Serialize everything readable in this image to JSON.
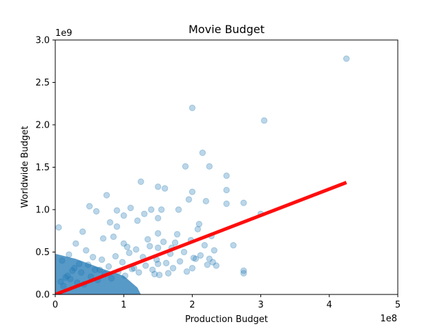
{
  "chart_data": {
    "type": "scatter",
    "title": "Movie Budget",
    "xlabel": "Production Budget",
    "ylabel": "Worldwide Budget",
    "x_offset_label": "1e8",
    "y_offset_label": "1e9",
    "xlim": [
      0,
      5
    ],
    "ylim": [
      0,
      3.0
    ],
    "x_ticks": [
      "0",
      "1",
      "2",
      "3",
      "4",
      "5"
    ],
    "y_ticks": [
      "0.0",
      "0.5",
      "1.0",
      "1.5",
      "2.0",
      "2.5",
      "3.0"
    ],
    "grid": false,
    "point_color": "#1f77b4",
    "point_opacity": 0.3,
    "line_color": "#ff0000",
    "series": [
      {
        "kind": "points",
        "x": [
          4.25,
          2.0,
          3.05,
          2.15,
          1.9,
          2.25,
          2.5,
          1.25,
          2.5,
          1.5,
          1.6,
          2.0,
          2.75,
          2.5,
          2.2,
          1.8,
          1.55,
          1.95,
          3.0,
          0.75,
          1.1,
          0.9,
          1.4,
          0.05,
          0.5,
          2.6,
          2.3,
          2.75,
          2.75,
          1.3,
          1.7,
          2.1,
          2.0,
          2.25,
          0.6,
          0.8,
          1.0,
          1.2,
          0.4,
          0.3,
          0.2,
          0.1,
          1.5,
          1.5,
          1.5,
          1.5,
          1.0,
          0.7,
          0.9,
          1.35,
          2.05,
          2.35,
          1.75,
          1.65,
          0.45,
          0.55,
          0.65,
          0.85,
          1.05,
          1.15,
          1.45,
          0.35,
          0.25,
          0.15,
          0.08,
          0.12,
          0.18,
          0.22,
          0.28,
          0.32,
          0.38,
          0.42,
          0.48,
          0.52,
          0.58,
          0.62,
          0.68,
          0.72,
          0.78,
          0.82,
          0.88,
          0.92,
          0.98,
          1.02,
          1.08,
          1.12,
          1.18,
          1.22,
          1.28,
          1.32,
          1.38,
          1.42,
          1.48,
          1.52,
          1.58,
          1.62,
          1.68,
          1.72,
          1.78,
          1.82,
          1.88,
          1.92,
          1.98,
          2.02,
          2.08,
          2.12,
          2.18,
          2.22,
          2.28,
          2.32
        ],
        "y": [
          2.78,
          2.2,
          2.05,
          1.67,
          1.51,
          1.51,
          1.4,
          1.33,
          1.23,
          1.27,
          1.25,
          1.21,
          1.08,
          1.07,
          1.1,
          1.0,
          1.0,
          1.12,
          0.95,
          1.17,
          1.02,
          0.99,
          1.0,
          0.79,
          1.04,
          0.58,
          0.38,
          0.28,
          0.25,
          0.95,
          0.55,
          0.83,
          0.31,
          0.42,
          0.98,
          0.85,
          0.93,
          0.87,
          0.74,
          0.6,
          0.47,
          0.4,
          0.9,
          0.72,
          0.55,
          0.36,
          0.6,
          0.66,
          0.8,
          0.65,
          0.42,
          0.34,
          0.61,
          0.25,
          0.52,
          0.44,
          0.29,
          0.68,
          0.56,
          0.31,
          0.24,
          0.36,
          0.28,
          0.2,
          0.15,
          0.1,
          0.22,
          0.18,
          0.31,
          0.14,
          0.26,
          0.12,
          0.35,
          0.21,
          0.29,
          0.17,
          0.41,
          0.24,
          0.33,
          0.19,
          0.45,
          0.27,
          0.38,
          0.22,
          0.49,
          0.3,
          0.53,
          0.26,
          0.44,
          0.34,
          0.57,
          0.29,
          0.41,
          0.23,
          0.62,
          0.37,
          0.48,
          0.31,
          0.71,
          0.39,
          0.5,
          0.27,
          0.64,
          0.43,
          0.77,
          0.46,
          0.58,
          0.35,
          0.69,
          0.52
        ]
      },
      {
        "kind": "line",
        "x": [
          0.0,
          4.25
        ],
        "y": [
          0.0,
          1.32
        ]
      }
    ]
  }
}
